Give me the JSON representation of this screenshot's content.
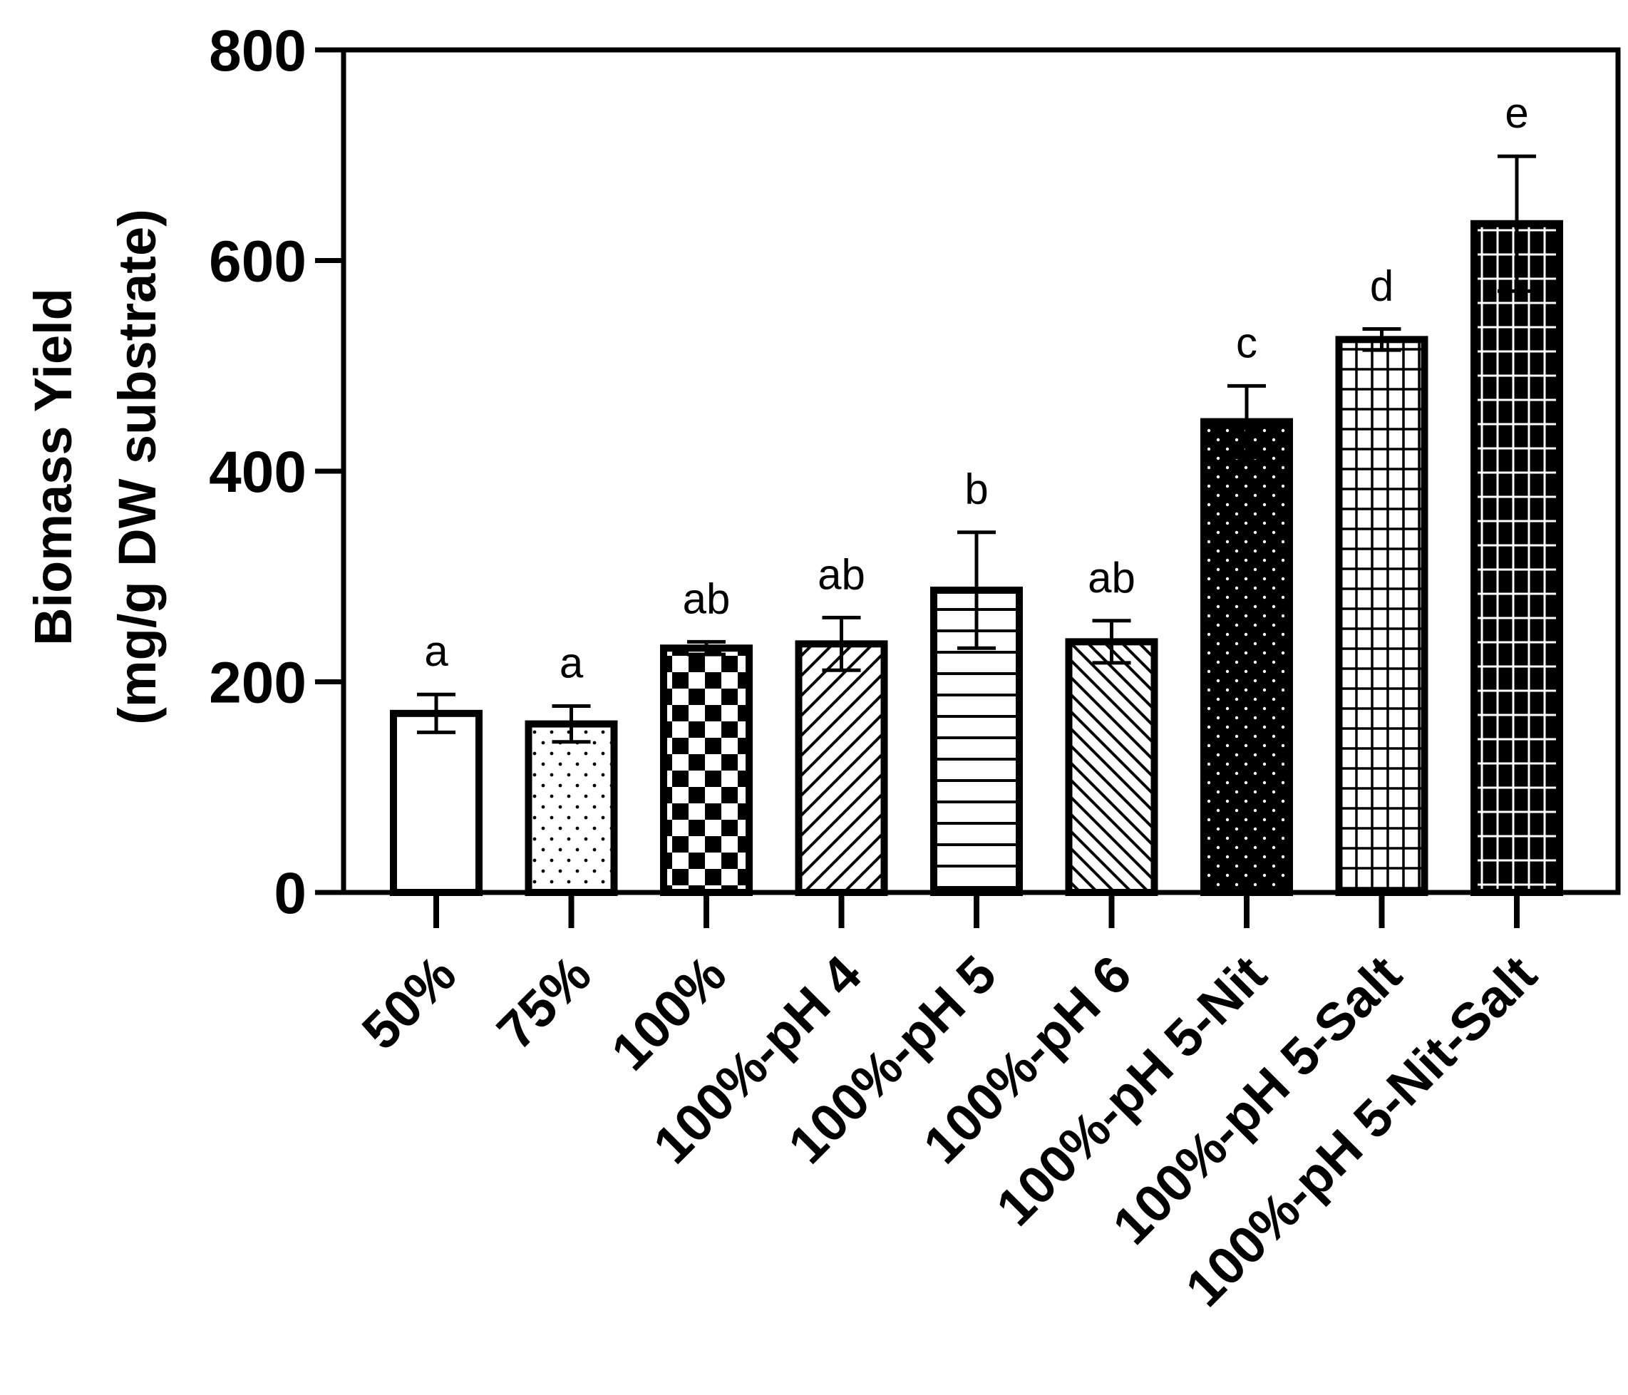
{
  "chart_data": {
    "type": "bar",
    "title": "",
    "xlabel": "",
    "ylabel_line1": "Biomass Yield",
    "ylabel_line2": "(mg/g DW substrate)",
    "ylim": [
      0,
      800
    ],
    "yticks": [
      0,
      200,
      400,
      600,
      800
    ],
    "ytick_labels": [
      "0",
      "200",
      "400",
      "600",
      "800"
    ],
    "grid": false,
    "legend": "none",
    "categories": [
      "50%",
      "75%",
      "100%",
      "100%-pH 4",
      "100%-pH 5",
      "100%-pH 6",
      "100%-pH 5-Nit",
      "100%-pH 5-Salt",
      "100%-pH 5-Nit-Salt"
    ],
    "values": [
      170,
      160,
      232,
      236,
      287,
      238,
      447,
      525,
      635
    ],
    "errors": [
      18,
      17,
      6,
      25,
      55,
      20,
      34,
      10,
      64
    ],
    "significance_letters": [
      "a",
      "a",
      "ab",
      "ab",
      "b",
      "ab",
      "c",
      "d",
      "e"
    ],
    "patterns": [
      "empty",
      "sparse-dots",
      "checker",
      "diag-right",
      "horizontal",
      "diag-left",
      "dense-dots-dark",
      "grid-fine",
      "grid-dark"
    ]
  },
  "colors": {
    "ink": "#000000",
    "paper": "#ffffff"
  }
}
